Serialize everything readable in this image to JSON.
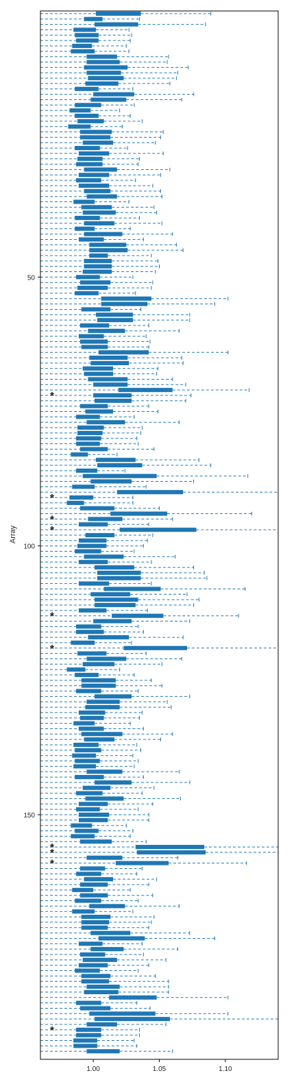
{
  "chart_data": {
    "type": "boxplot",
    "orientation": "horizontal",
    "title": "",
    "ylabel": "Array",
    "xlabel": "",
    "xlim": [
      0.96,
      1.14
    ],
    "x_ticks": [
      1.0,
      1.05,
      1.1
    ],
    "x_tick_labels": [
      "1.00",
      "1.05",
      "1.10"
    ],
    "y_ticks": [
      50,
      100,
      150
    ],
    "y_tick_labels": [
      "50",
      "100",
      "150"
    ],
    "n_arrays": 195,
    "box_color": "#1f77b4",
    "whisker_color": "#1f77b4",
    "marker_color": "#000000",
    "outlier_marker_label": "*",
    "flagged_arrays": [
      72,
      91,
      95,
      97,
      113,
      119,
      156,
      157,
      159,
      190
    ],
    "boxes": [
      [
        1.002,
        1.036,
        1.089
      ],
      [
        0.993,
        1.007,
        1.035
      ],
      [
        1.001,
        1.034,
        1.085
      ],
      [
        0.985,
        1.002,
        1.027
      ],
      [
        0.986,
        1.004,
        1.029
      ],
      [
        0.987,
        1.004,
        1.028
      ],
      [
        0.984,
        0.999,
        1.025
      ],
      [
        0.983,
        1.001,
        1.027
      ],
      [
        0.995,
        1.018,
        1.057
      ],
      [
        0.995,
        1.02,
        1.056
      ],
      [
        0.993,
        1.026,
        1.072
      ],
      [
        0.995,
        1.021,
        1.064
      ],
      [
        0.996,
        1.023,
        1.063
      ],
      [
        0.994,
        1.019,
        1.058
      ],
      [
        0.986,
        1.004,
        1.03
      ],
      [
        1.0,
        1.031,
        1.076
      ],
      [
        0.998,
        1.025,
        1.067
      ],
      [
        0.986,
        1.006,
        1.031
      ],
      [
        0.982,
        0.998,
        1.02
      ],
      [
        0.986,
        1.004,
        1.028
      ],
      [
        0.988,
        1.008,
        1.037
      ],
      [
        0.981,
        0.998,
        1.022
      ],
      [
        0.99,
        1.014,
        1.053
      ],
      [
        0.99,
        1.013,
        1.051
      ],
      [
        0.992,
        1.015,
        1.047
      ],
      [
        0.986,
        1.005,
        1.026
      ],
      [
        0.989,
        1.012,
        1.053
      ],
      [
        0.988,
        1.007,
        1.035
      ],
      [
        0.987,
        1.007,
        1.034
      ],
      [
        0.993,
        1.018,
        1.058
      ],
      [
        0.989,
        1.012,
        1.051
      ],
      [
        0.987,
        1.006,
        1.032
      ],
      [
        0.989,
        1.012,
        1.045
      ],
      [
        0.993,
        1.013,
        1.051
      ],
      [
        0.995,
        1.018,
        1.052
      ],
      [
        0.985,
        1.001,
        1.027
      ],
      [
        0.991,
        1.014,
        1.046
      ],
      [
        0.992,
        1.017,
        1.048
      ],
      [
        0.986,
        1.005,
        1.035
      ],
      [
        0.993,
        1.016,
        1.052
      ],
      [
        0.986,
        1.001,
        1.028
      ],
      [
        0.993,
        1.022,
        1.06
      ],
      [
        0.989,
        1.008,
        1.038
      ],
      [
        0.997,
        1.025,
        1.063
      ],
      [
        0.997,
        1.026,
        1.068
      ],
      [
        0.997,
        1.011,
        1.044
      ],
      [
        0.993,
        1.014,
        1.049
      ],
      [
        0.993,
        1.014,
        1.05
      ],
      [
        0.992,
        1.014,
        1.047
      ],
      [
        0.987,
        1.005,
        1.03
      ],
      [
        0.99,
        1.013,
        1.045
      ],
      [
        0.988,
        1.011,
        1.044
      ],
      [
        0.986,
        1.004,
        1.032
      ],
      [
        1.006,
        1.044,
        1.102
      ],
      [
        1.006,
        1.041,
        1.092
      ],
      [
        0.991,
        1.013,
        1.036
      ],
      [
        1.002,
        1.03,
        1.073
      ],
      [
        1.003,
        1.03,
        1.073
      ],
      [
        0.99,
        1.012,
        1.042
      ],
      [
        0.996,
        1.024,
        1.065
      ],
      [
        0.989,
        1.008,
        1.04
      ],
      [
        0.99,
        1.011,
        1.043
      ],
      [
        0.991,
        1.011,
        1.042
      ],
      [
        1.004,
        1.042,
        1.102
      ],
      [
        0.997,
        1.026,
        1.067
      ],
      [
        0.998,
        1.027,
        1.068
      ],
      [
        0.992,
        1.015,
        1.049
      ],
      [
        0.993,
        1.015,
        1.048
      ],
      [
        0.996,
        1.026,
        1.06
      ],
      [
        1.0,
        1.026,
        1.07
      ],
      [
        1.019,
        1.06,
        1.118
      ],
      [
        1.0,
        1.029,
        1.074
      ],
      [
        1.001,
        1.029,
        1.07
      ],
      [
        0.99,
        1.011,
        1.042
      ],
      [
        0.994,
        1.015,
        1.049
      ],
      [
        0.987,
        1.005,
        1.031
      ],
      [
        0.995,
        1.024,
        1.065
      ],
      [
        0.988,
        1.008,
        1.037
      ],
      [
        0.988,
        1.007,
        1.036
      ],
      [
        0.987,
        1.006,
        1.033
      ],
      [
        0.987,
        1.005,
        1.034
      ],
      [
        0.99,
        1.011,
        1.046
      ],
      [
        0.983,
        0.996,
        1.018
      ],
      [
        1.002,
        1.032,
        1.08
      ],
      [
        1.003,
        1.037,
        1.089
      ],
      [
        0.987,
        1.003,
        1.024
      ],
      [
        0.992,
        1.048,
        1.117
      ],
      [
        0.998,
        1.029,
        1.076
      ],
      [
        0.984,
        1.001,
        1.04
      ],
      [
        1.018,
        1.068,
        1.14
      ],
      [
        0.982,
        1.0,
        1.03
      ],
      [
        0.98,
        0.993,
        1.03
      ],
      [
        0.99,
        1.016,
        1.05
      ],
      [
        1.013,
        1.056,
        1.12
      ],
      [
        0.996,
        1.022,
        1.06
      ],
      [
        0.989,
        1.011,
        1.042
      ],
      [
        1.02,
        1.078,
        1.14
      ],
      [
        0.994,
        1.016,
        1.045
      ],
      [
        0.989,
        1.01,
        1.041
      ],
      [
        0.988,
        1.01,
        1.038
      ],
      [
        0.986,
        1.006,
        1.031
      ],
      [
        0.993,
        1.023,
        1.062
      ],
      [
        0.989,
        1.011,
        1.044
      ],
      [
        1.001,
        1.031,
        1.076
      ],
      [
        1.003,
        1.036,
        1.084
      ],
      [
        1.003,
        1.036,
        1.086
      ],
      [
        0.989,
        1.012,
        1.044
      ],
      [
        1.008,
        1.051,
        1.115
      ],
      [
        0.998,
        1.028,
        1.071
      ],
      [
        1.001,
        1.034,
        1.08
      ],
      [
        1.001,
        1.032,
        1.076
      ],
      [
        0.989,
        1.01,
        1.041
      ],
      [
        1.014,
        1.053,
        1.11
      ],
      [
        1.0,
        1.029,
        1.073
      ],
      [
        0.987,
        1.006,
        1.034
      ],
      [
        0.987,
        1.008,
        1.038
      ],
      [
        0.996,
        1.027,
        1.068
      ],
      [
        0.983,
        1.001,
        1.029
      ],
      [
        1.023,
        1.071,
        1.14
      ],
      [
        0.988,
        1.01,
        1.04
      ],
      [
        0.995,
        1.025,
        1.067
      ],
      [
        0.992,
        1.016,
        1.052
      ],
      [
        0.98,
        0.994,
        1.02
      ],
      [
        0.986,
        1.004,
        1.031
      ],
      [
        0.991,
        1.017,
        1.044
      ],
      [
        0.991,
        1.017,
        1.052
      ],
      [
        0.987,
        1.006,
        1.034
      ],
      [
        1.001,
        1.029,
        1.073
      ],
      [
        0.995,
        1.02,
        1.056
      ],
      [
        0.994,
        1.02,
        1.059
      ],
      [
        0.989,
        1.009,
        1.037
      ],
      [
        0.99,
        1.008,
        1.035
      ],
      [
        0.985,
        1.001,
        1.028
      ],
      [
        0.989,
        1.008,
        1.038
      ],
      [
        0.991,
        1.022,
        1.06
      ],
      [
        0.993,
        1.016,
        1.051
      ],
      [
        0.985,
        1.004,
        1.033
      ],
      [
        0.986,
        1.006,
        1.036
      ],
      [
        0.984,
        1.002,
        1.03
      ],
      [
        0.986,
        1.005,
        1.034
      ],
      [
        0.985,
        1.002,
        1.031
      ],
      [
        0.995,
        1.022,
        1.065
      ],
      [
        0.986,
        1.008,
        1.038
      ],
      [
        1.001,
        1.029,
        1.073
      ],
      [
        0.992,
        1.013,
        1.046
      ],
      [
        0.987,
        1.007,
        1.037
      ],
      [
        0.994,
        1.023,
        1.066
      ],
      [
        0.989,
        1.011,
        1.045
      ],
      [
        0.987,
        1.005,
        1.034
      ],
      [
        0.989,
        1.012,
        1.042
      ],
      [
        0.989,
        1.011,
        1.042
      ],
      [
        0.983,
        0.999,
        1.025
      ],
      [
        0.986,
        1.004,
        1.03
      ],
      [
        0.983,
        1.001,
        1.028
      ],
      [
        0.99,
        1.014,
        1.04
      ],
      [
        1.032,
        1.084,
        1.14
      ],
      [
        1.033,
        1.085,
        1.14
      ],
      [
        0.995,
        1.022,
        1.064
      ],
      [
        1.017,
        1.057,
        1.116
      ],
      [
        0.99,
        1.009,
        1.037
      ],
      [
        0.987,
        1.006,
        1.033
      ],
      [
        0.993,
        1.015,
        1.048
      ],
      [
        0.99,
        1.011,
        1.042
      ],
      [
        0.984,
        1.0,
        1.028
      ],
      [
        0.99,
        1.011,
        1.045
      ],
      [
        0.986,
        1.006,
        1.034
      ],
      [
        0.997,
        1.024,
        1.065
      ],
      [
        0.984,
        1.001,
        1.03
      ],
      [
        0.991,
        1.013,
        1.046
      ],
      [
        0.991,
        1.012,
        1.044
      ],
      [
        0.991,
        1.011,
        1.042
      ],
      [
        0.998,
        1.028,
        1.073
      ],
      [
        1.004,
        1.039,
        1.092
      ],
      [
        0.989,
        1.007,
        1.037
      ],
      [
        0.998,
        1.023,
        1.064
      ],
      [
        0.99,
        1.009,
        1.038
      ],
      [
        0.992,
        1.018,
        1.055
      ],
      [
        0.989,
        1.011,
        1.042
      ],
      [
        0.986,
        1.005,
        1.034
      ],
      [
        0.991,
        1.013,
        1.047
      ],
      [
        0.991,
        1.012,
        1.057
      ],
      [
        0.995,
        1.02,
        1.057
      ],
      [
        0.993,
        1.019,
        1.057
      ],
      [
        1.012,
        1.048,
        1.102
      ],
      [
        0.987,
        1.006,
        1.033
      ],
      [
        0.99,
        1.013,
        1.043
      ],
      [
        0.997,
        1.047,
        1.102
      ],
      [
        1.001,
        1.058,
        1.14
      ],
      [
        0.995,
        1.018,
        1.055
      ],
      [
        0.987,
        1.006,
        1.035
      ],
      [
        0.987,
        1.006,
        1.035
      ],
      [
        0.985,
        1.003,
        1.031
      ],
      [
        0.985,
        1.003,
        1.033
      ],
      [
        0.995,
        1.02,
        1.06
      ]
    ]
  }
}
